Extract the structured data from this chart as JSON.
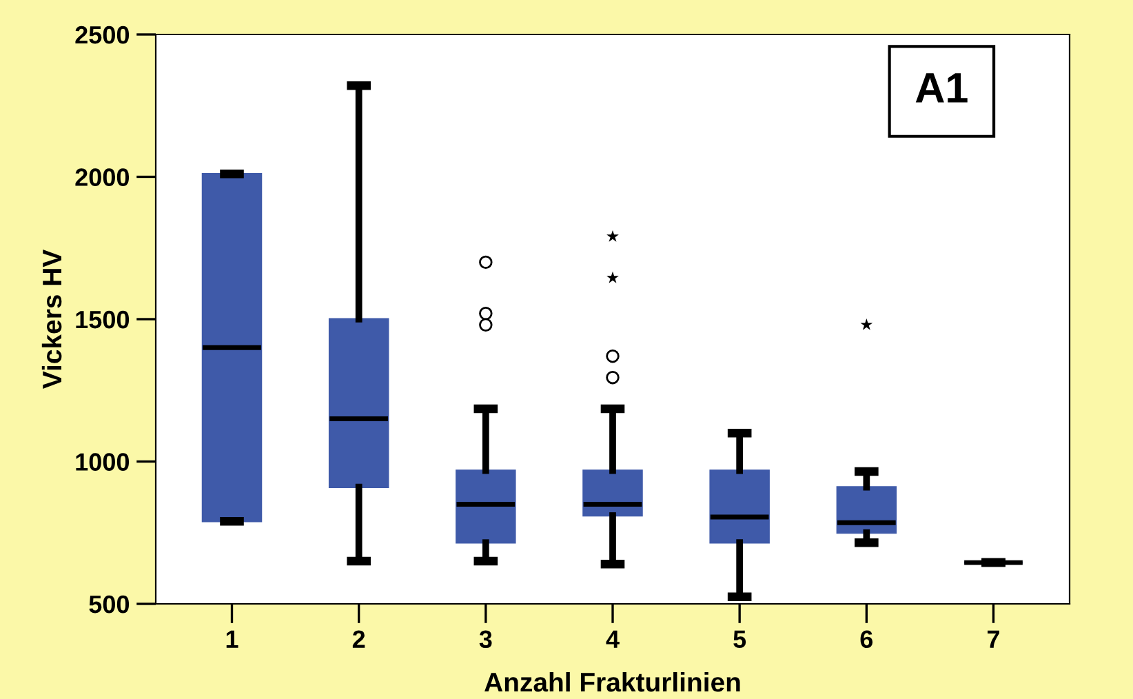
{
  "chart_data": {
    "type": "box",
    "xlabel": "Anzahl Frakturlinien",
    "ylabel": "Vickers HV",
    "categories": [
      "1",
      "2",
      "3",
      "4",
      "5",
      "6",
      "7"
    ],
    "ylim": [
      500,
      2500
    ],
    "yticks": [
      500,
      1000,
      1500,
      2000,
      2500
    ],
    "grid": false,
    "legend": false,
    "annotations": [
      "A1"
    ],
    "series": [
      {
        "color": "#3f5aa9",
        "boxes": [
          {
            "low": 790,
            "q1": 790,
            "median": 1400,
            "q3": 2010,
            "high": 2010
          },
          {
            "low": 650,
            "q1": 910,
            "median": 1150,
            "q3": 1500,
            "high": 2320
          },
          {
            "low": 650,
            "q1": 715,
            "median": 850,
            "q3": 968,
            "high": 1185,
            "outliers": [
              1700,
              1520,
              1480
            ]
          },
          {
            "low": 640,
            "q1": 810,
            "median": 850,
            "q3": 968,
            "high": 1185,
            "outliers": [
              1370,
              1295
            ]
          },
          {
            "low": 525,
            "q1": 715,
            "median": 805,
            "q3": 968,
            "high": 1100
          },
          {
            "low": 715,
            "q1": 750,
            "median": 785,
            "q3": 910,
            "high": 965
          },
          {
            "low": 645,
            "q1": 645,
            "median": 645,
            "q3": 645,
            "high": 645
          }
        ]
      },
      {
        "type": "scatter",
        "marker": "star",
        "color": "#000000",
        "x": [
          "4",
          "4",
          "6"
        ],
        "values": [
          1790,
          1645,
          1480
        ]
      }
    ]
  }
}
